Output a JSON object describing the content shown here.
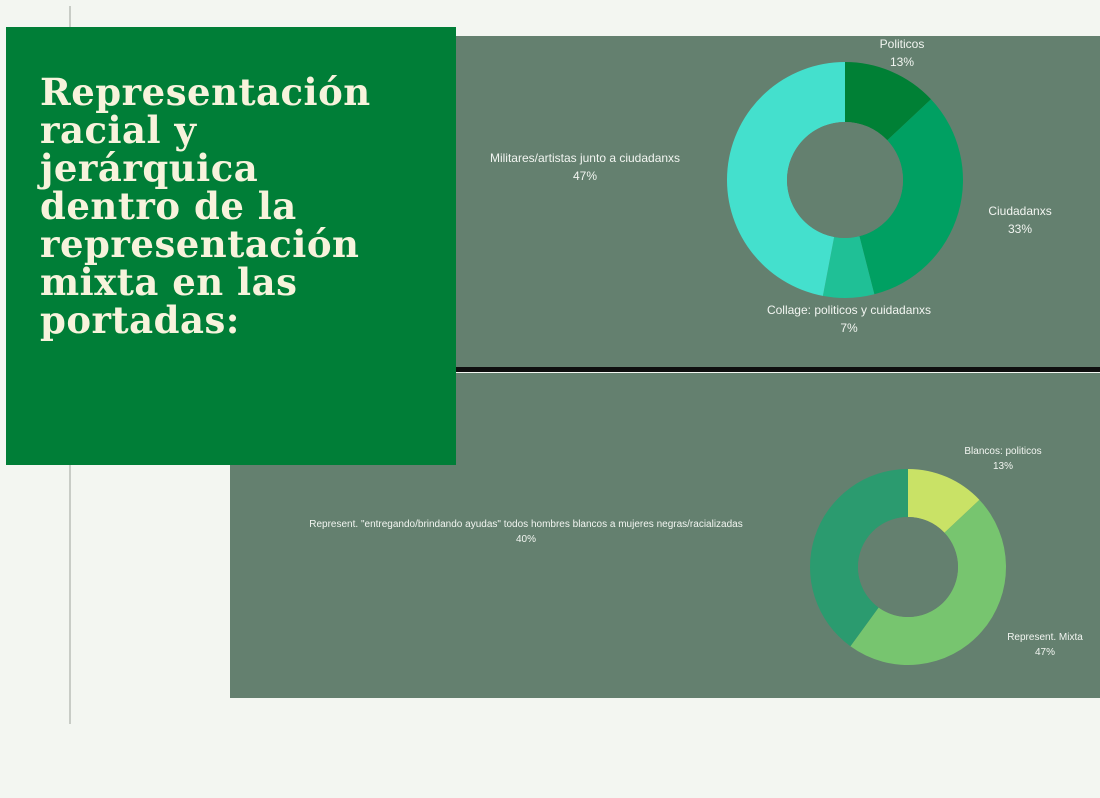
{
  "title": "Representación\nracial y\njerárquica\ndentro de la\nrepresentación\nmixta en las\nportadas:",
  "chart_data": [
    {
      "type": "pie",
      "variant": "donut",
      "slices": [
        {
          "label": "Politicos",
          "value": 13,
          "display": "13%",
          "color": "#008035"
        },
        {
          "label": "Ciudadanxs",
          "value": 33,
          "display": "33%",
          "color": "#00a062"
        },
        {
          "label": "Collage: politicos y cuidadanxs",
          "value": 7,
          "display": "7%",
          "color": "#1fc096"
        },
        {
          "label": "Militares/artistas junto a ciudadanxs",
          "value": 47,
          "display": "47%",
          "color": "#44e0cd"
        }
      ]
    },
    {
      "type": "pie",
      "variant": "donut",
      "slices": [
        {
          "label": "Blancos: politicos",
          "value": 13,
          "display": "13%",
          "color": "#c9e266"
        },
        {
          "label": "Represent. Mixta",
          "value": 47,
          "display": "47%",
          "color": "#77c56f"
        },
        {
          "label": "Represent. \"entregando/brindando ayudas\" todos hombres blancos a mujeres negras/racializadas",
          "value": 40,
          "display": "40%",
          "color": "#2b9b6f"
        }
      ]
    }
  ]
}
